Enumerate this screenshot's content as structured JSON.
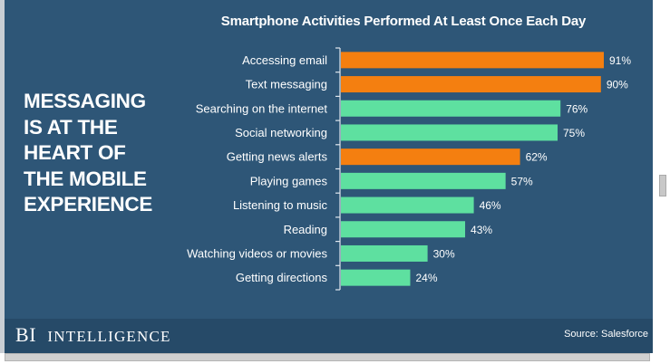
{
  "headline": [
    "MESSAGING",
    "IS AT THE",
    "HEART OF",
    "THE MOBILE",
    "EXPERIENCE"
  ],
  "brand": {
    "left": "BI",
    "right": "Intelligence"
  },
  "source": "Source: Salesforce",
  "colors": {
    "background": "#2e5677",
    "footer": "#264a68",
    "orange": "#f47f10",
    "green": "#5ee0a0"
  },
  "chart_data": {
    "type": "bar",
    "orientation": "horizontal",
    "title": "Smartphone Activities Performed At Least Once Each Day",
    "categories": [
      "Accessing email",
      "Text messaging",
      "Searching on the internet",
      "Social networking",
      "Getting news alerts",
      "Playing games",
      "Listening to music",
      "Reading",
      "Watching videos or movies",
      "Getting directions"
    ],
    "values": [
      91,
      90,
      76,
      75,
      62,
      57,
      46,
      43,
      30,
      24
    ],
    "value_labels": [
      "91%",
      "90%",
      "76%",
      "75%",
      "62%",
      "57%",
      "46%",
      "43%",
      "30%",
      "24%"
    ],
    "bar_colors": [
      "orange",
      "orange",
      "green",
      "green",
      "orange",
      "green",
      "green",
      "green",
      "green",
      "green"
    ],
    "unit": "%",
    "xlim": [
      0,
      100
    ],
    "grid": false,
    "legend": "none"
  }
}
